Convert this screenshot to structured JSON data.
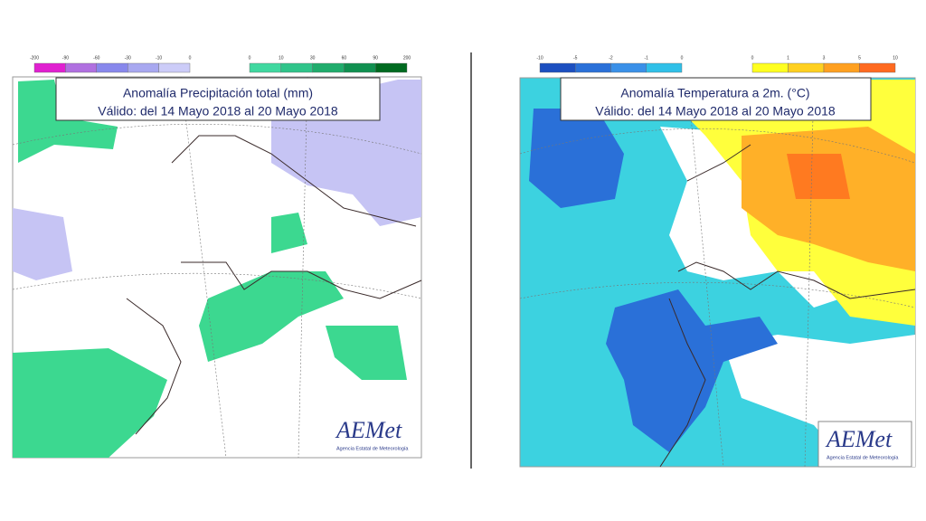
{
  "panels": [
    {
      "title": {
        "line1": "Anomalía Precipitación total (mm)",
        "line2": "Válido: del 14 Mayo 2018 al 20 Mayo 2018"
      },
      "legend_negative": {
        "labels": [
          "-200",
          "-90",
          "-60",
          "-30",
          "-10",
          "0"
        ],
        "colors": [
          "#e020d0",
          "#b070e0",
          "#8888ec",
          "#a8a8f0",
          "#ccccf8"
        ]
      },
      "legend_positive": {
        "labels": [
          "0",
          "10",
          "30",
          "60",
          "90",
          "200"
        ],
        "colors": [
          "#40d8a0",
          "#30c48a",
          "#20ac6c",
          "#109050",
          "#006a20"
        ]
      },
      "logo": {
        "name": "AEMet",
        "subtitle": "Agencia Estatal de Meteorología"
      }
    },
    {
      "title": {
        "line1": "Anomalía Temperatura a 2m. (°C)",
        "line2": "Válido: del 14 Mayo 2018 al 20 Mayo 2018"
      },
      "legend_negative": {
        "labels": [
          "-10",
          "-5",
          "-2",
          "-1",
          "0"
        ],
        "colors": [
          "#1c4fc0",
          "#2a70d8",
          "#3a90e8",
          "#30c0e8"
        ]
      },
      "legend_positive": {
        "labels": [
          "0",
          "1",
          "3",
          "5",
          "10"
        ],
        "colors": [
          "#ffff20",
          "#ffd020",
          "#ffa020",
          "#ff6a20"
        ]
      },
      "logo": {
        "name": "AEMet",
        "subtitle": "Agencia Estatal de Meteorología"
      }
    }
  ]
}
